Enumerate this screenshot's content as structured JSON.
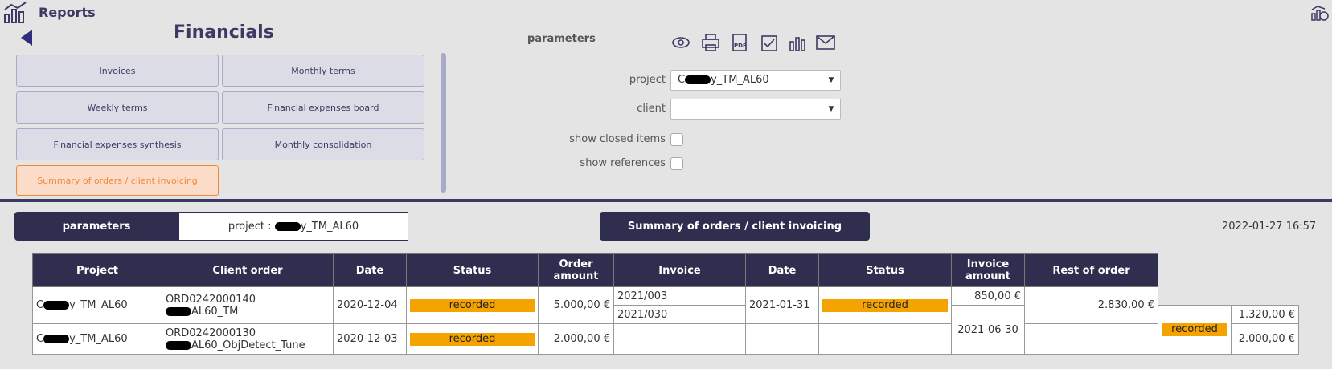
{
  "header": {
    "app": "Reports",
    "heading": "Financials"
  },
  "menu": [
    "Invoices",
    "Monthly terms",
    "Weekly terms",
    "Financial expenses board",
    "Financial expenses synthesis",
    "Monthly consolidation",
    "Summary of orders / client invoicing"
  ],
  "params": {
    "title": "parameters",
    "project_label": "project",
    "project_value": "y_TM_AL60",
    "client_label": "client",
    "closed_label": "show closed items",
    "refs_label": "show references"
  },
  "report": {
    "params_tab": "parameters",
    "params_project": "project :",
    "params_project_value": "y_TM_AL60",
    "title": "Summary of orders / client invoicing",
    "timestamp": "2022-01-27 16:57"
  },
  "table": {
    "columns": [
      "Project",
      "Client order",
      "Date",
      "Status",
      "Order amount",
      "Invoice",
      "Date",
      "Status",
      "Invoice amount",
      "Rest of order"
    ],
    "rows": [
      {
        "project": "y_TM_AL60",
        "order": "ORD0242000140",
        "order_ref": "AL60_TM",
        "date": "2020-12-04",
        "status": "recorded",
        "amount": "5.000,00 €",
        "invoices": [
          "2021/003",
          "2021/030"
        ],
        "inv_date": "2021-01-31",
        "inv_status": "recorded",
        "inv_amount": "850,00 €",
        "rest": "2.830,00 €"
      },
      {
        "project": "y_TM_AL60",
        "order": "ORD0242000130",
        "order_ref": "AL60_ObjDetect_Tune",
        "date": "2020-12-03",
        "status": "recorded",
        "amount": "2.000,00 €"
      }
    ],
    "overflow": {
      "date": "2021-06-30",
      "status": "recorded",
      "amounts": [
        "1.320,00 €",
        "2.000,00 €"
      ]
    }
  }
}
